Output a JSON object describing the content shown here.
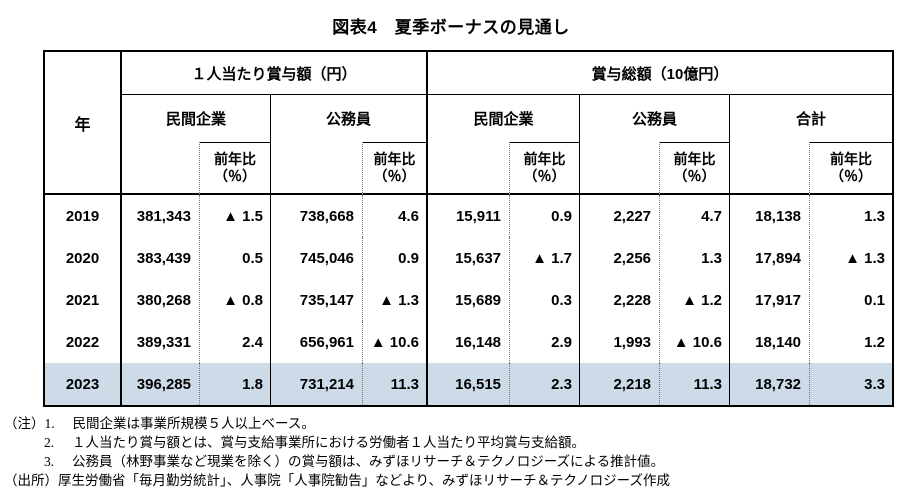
{
  "title": "図表4　夏季ボーナスの見通し",
  "table": {
    "year_header": "年",
    "group_headers": [
      "１人当たり賞与額（円）",
      "賞与総額（10億円）"
    ],
    "subgroup_headers": [
      "民間企業",
      "公務員",
      "民間企業",
      "公務員",
      "合計"
    ],
    "yoy_header": "前年比\n（％）",
    "rows": [
      {
        "year": "2019",
        "values": [
          "381,343",
          "▲ 1.5",
          "738,668",
          "4.6",
          "15,911",
          "0.9",
          "2,227",
          "4.7",
          "18,138",
          "1.3"
        ],
        "highlight": false
      },
      {
        "year": "2020",
        "values": [
          "383,439",
          "0.5",
          "745,046",
          "0.9",
          "15,637",
          "▲ 1.7",
          "2,256",
          "1.3",
          "17,894",
          "▲ 1.3"
        ],
        "highlight": false
      },
      {
        "year": "2021",
        "values": [
          "380,268",
          "▲ 0.8",
          "735,147",
          "▲ 1.3",
          "15,689",
          "0.3",
          "2,228",
          "▲ 1.2",
          "17,917",
          "0.1"
        ],
        "highlight": false
      },
      {
        "year": "2022",
        "values": [
          "389,331",
          "2.4",
          "656,961",
          "▲ 10.6",
          "16,148",
          "2.9",
          "1,993",
          "▲ 10.6",
          "18,140",
          "1.2"
        ],
        "highlight": false
      },
      {
        "year": "2023",
        "values": [
          "396,285",
          "1.8",
          "731,214",
          "11.3",
          "16,515",
          "2.3",
          "2,218",
          "11.3",
          "18,732",
          "3.3"
        ],
        "highlight": true
      }
    ]
  },
  "notes": {
    "label": "（注）",
    "items": [
      {
        "num": "1.",
        "text": "民間企業は事業所規模５人以上ベース。"
      },
      {
        "num": "2.",
        "text": "１人当たり賞与額とは、賞与支給事業所における労働者１人当たり平均賞与支給額。"
      },
      {
        "num": "3.",
        "text": "公務員（林野事業など現業を除く）の賞与額は、みずほリサーチ＆テクノロジーズによる推計値。"
      }
    ],
    "source_label": "（出所）",
    "source_text": "厚生労働省「毎月勤労統計」、人事院「人事院勧告」などより、みずほリサーチ＆テクノロジーズ作成"
  },
  "colors": {
    "highlight_row": "#ccdbe7"
  }
}
